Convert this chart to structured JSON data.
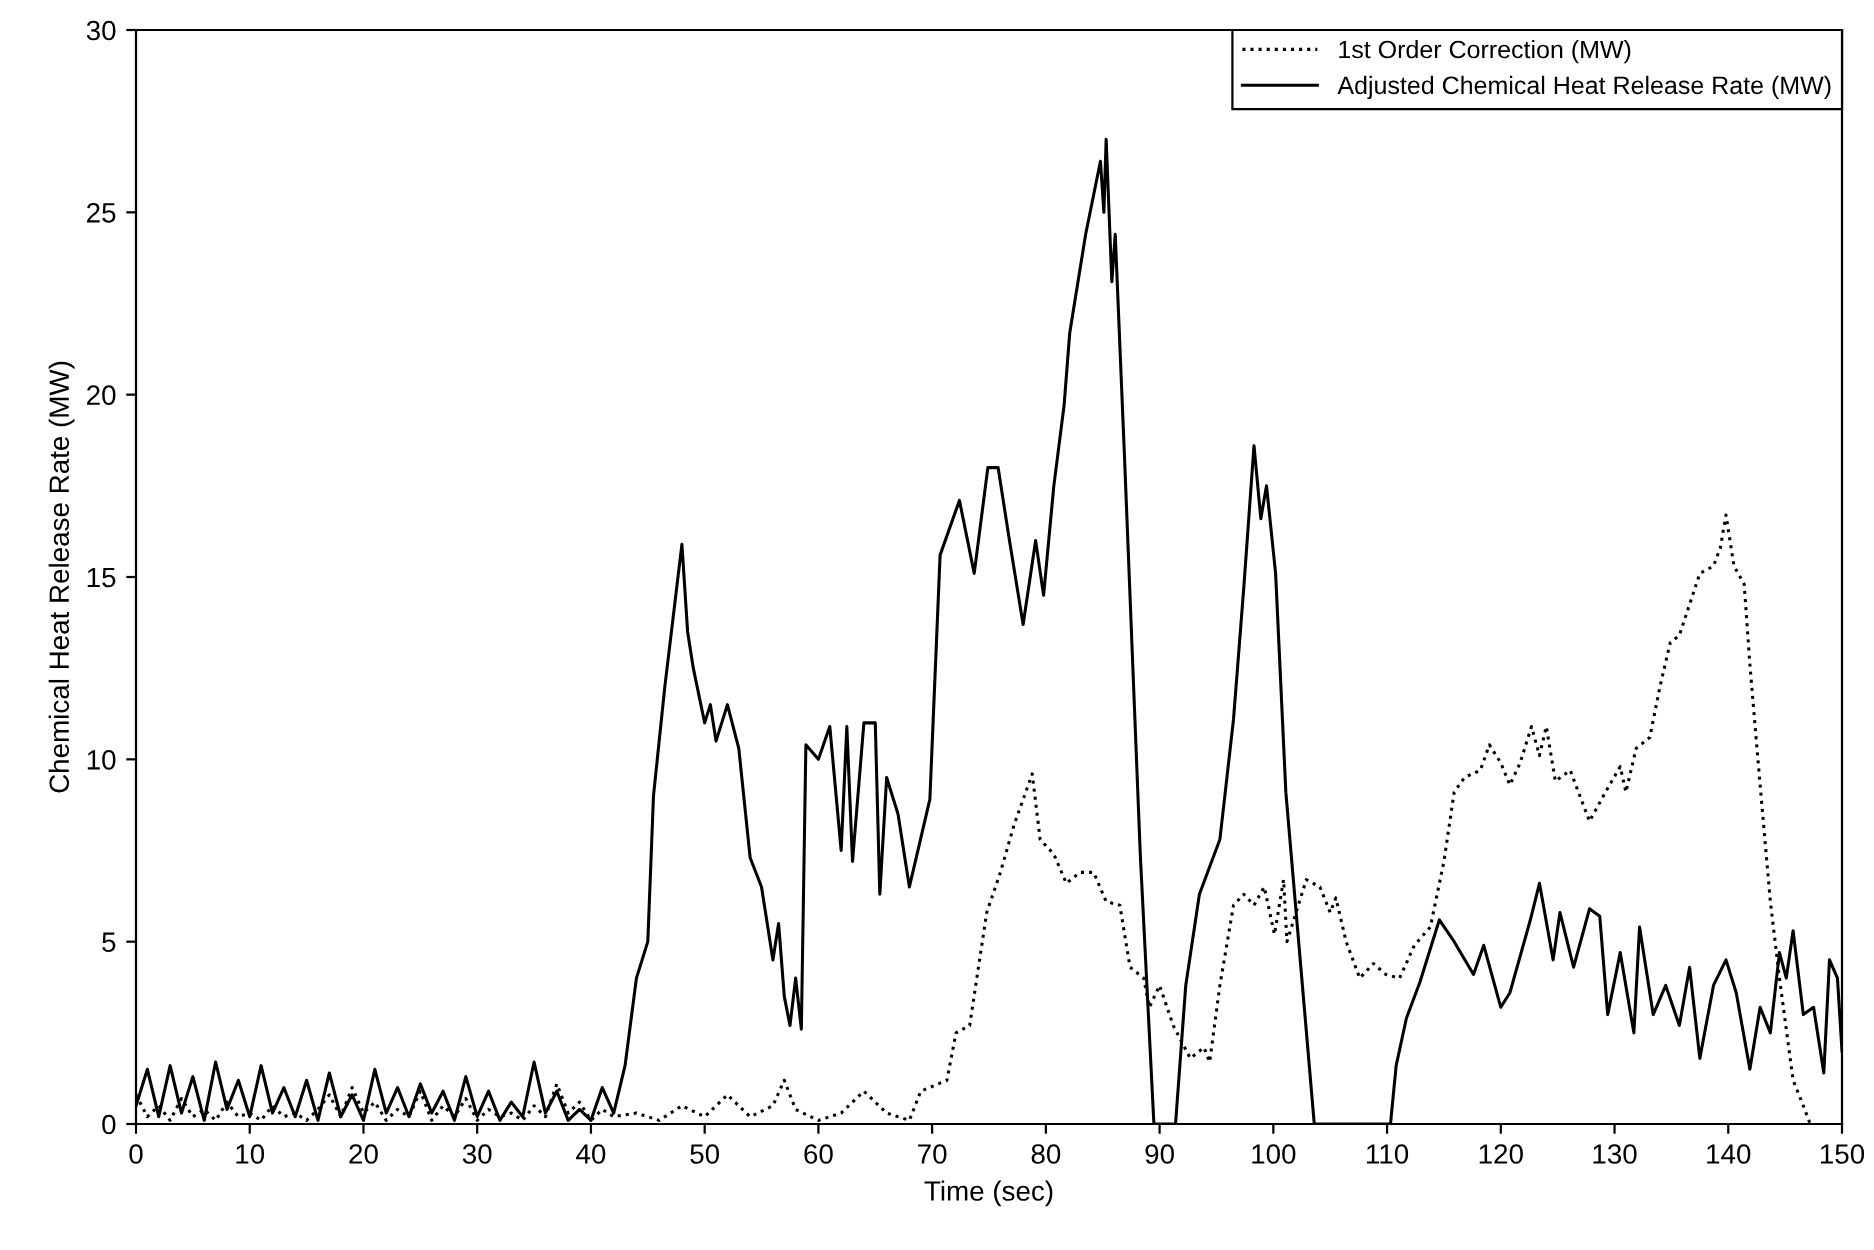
{
  "chart_data": {
    "type": "line",
    "xlabel": "Time (sec)",
    "ylabel": "Chemical Heat Release Rate (MW)",
    "xlim": [
      0,
      150
    ],
    "xticks": [
      0,
      10,
      20,
      30,
      40,
      50,
      60,
      70,
      80,
      90,
      100,
      110,
      120,
      130,
      140,
      150
    ],
    "ylim": [
      0,
      30
    ],
    "yticks": [
      0,
      5,
      10,
      15,
      20,
      25,
      30
    ],
    "grid": false,
    "legend": "top right",
    "marker": "none",
    "series": [
      {
        "name": "1st Order Correction (MW)",
        "color": "#000000",
        "line_style": "dotted",
        "x": [
          0,
          1,
          2,
          3,
          4,
          5,
          6,
          7,
          8,
          9,
          10,
          11,
          12,
          13,
          14,
          15,
          16,
          17,
          18,
          19,
          20,
          21,
          22,
          23,
          24,
          25,
          26,
          27,
          28,
          29,
          30,
          31,
          32,
          33,
          34,
          35,
          36,
          37,
          38,
          39,
          40,
          41,
          42,
          44,
          46,
          48,
          50,
          52,
          54,
          56,
          57,
          58,
          60,
          62,
          64,
          66,
          68,
          69,
          71.3,
          72.1,
          73.3,
          74.8,
          76,
          77.2,
          78.8,
          79.5,
          80.7,
          81.8,
          83,
          84.2,
          85.3,
          86.5,
          87.4,
          88.6,
          89.1,
          90,
          91.2,
          92.7,
          93.9,
          94.4,
          95.3,
          96.5,
          97.4,
          98.3,
          99.2,
          100.1,
          100.9,
          101.2,
          102.9,
          104.1,
          105,
          105.5,
          106.4,
          107.6,
          108.8,
          109.9,
          111.1,
          112.4,
          113.8,
          115,
          115.9,
          116.8,
          118.2,
          119,
          120,
          120.8,
          121.7,
          122.7,
          123.4,
          124,
          124.8,
          126.1,
          127.8,
          129.2,
          130.5,
          131,
          131.9,
          133.1,
          134,
          134.9,
          135.7,
          137.5,
          138.7,
          139.3,
          139.8,
          140.5,
          141.4,
          141.9,
          142.8,
          143.7,
          144.5,
          145.7,
          146.6,
          147.2
        ],
        "values": [
          0.8,
          0.2,
          0.5,
          0.1,
          0.7,
          0.2,
          0.4,
          0.1,
          0.6,
          0.2,
          0.3,
          0.1,
          0.5,
          0.2,
          0.3,
          0.1,
          0.4,
          0.8,
          0.2,
          1.0,
          0.3,
          0.6,
          0.1,
          0.4,
          0.2,
          0.9,
          0.1,
          0.5,
          0.2,
          0.7,
          0.1,
          0.4,
          0.2,
          0.3,
          0.1,
          0.5,
          0.2,
          1.1,
          0.3,
          0.6,
          0.1,
          0.4,
          0.2,
          0.3,
          0.1,
          0.5,
          0.2,
          0.8,
          0.2,
          0.5,
          1.2,
          0.4,
          0.1,
          0.3,
          0.9,
          0.3,
          0.1,
          0.9,
          1.2,
          2.5,
          2.7,
          5.8,
          6.9,
          8.2,
          9.6,
          7.8,
          7.4,
          6.6,
          6.9,
          6.9,
          6.1,
          6.0,
          4.3,
          4.0,
          3.2,
          3.8,
          2.7,
          1.8,
          2.1,
          1.7,
          3.8,
          6.0,
          6.3,
          6.0,
          6.5,
          5.2,
          6.7,
          5.0,
          6.7,
          6.5,
          5.8,
          6.2,
          5.0,
          4.0,
          4.4,
          4.1,
          4.0,
          4.9,
          5.4,
          7.2,
          9.1,
          9.5,
          9.7,
          10.4,
          9.9,
          9.3,
          9.9,
          10.9,
          10.1,
          10.9,
          9.4,
          9.7,
          8.3,
          9.1,
          9.8,
          9.1,
          10.3,
          10.6,
          12.0,
          13.2,
          13.4,
          15.1,
          15.3,
          15.8,
          16.7,
          15.3,
          14.8,
          12.6,
          9.3,
          6.1,
          4.0,
          1.2,
          0.5,
          0
        ]
      },
      {
        "name": "Adjusted Chemical Heat Release Rate (MW)",
        "color": "#000000",
        "line_style": "solid",
        "x": [
          0,
          1,
          2,
          3,
          4,
          5,
          6,
          7,
          8,
          9,
          10,
          11,
          12,
          13,
          14,
          15,
          16,
          17,
          18,
          19,
          20,
          21,
          22,
          23,
          24,
          25,
          26,
          27,
          28,
          29,
          30,
          31,
          32,
          33,
          34,
          35,
          36,
          37,
          38,
          39,
          40,
          41,
          42,
          43,
          44,
          45,
          45.5,
          46.5,
          48,
          48.5,
          49,
          50,
          50.5,
          51,
          52,
          53,
          54,
          55,
          56,
          56.5,
          57,
          57.5,
          58,
          58.5,
          58.9,
          60,
          61,
          62,
          62.5,
          63,
          64,
          65,
          65.4,
          66,
          67,
          68,
          69.8,
          70.7,
          72.4,
          73.7,
          74.9,
          75.8,
          76.8,
          78,
          79.1,
          79.8,
          80.7,
          81.6,
          82.1,
          83.5,
          84.8,
          85.1,
          85.3,
          85.8,
          86.1,
          86.9,
          88.3,
          89.5,
          91.4,
          92.3,
          93.5,
          95.3,
          96.5,
          97.4,
          98.3,
          98.9,
          99.4,
          100.2,
          101.1,
          103.6,
          110.3,
          110.8,
          111.7,
          112.9,
          114.6,
          115.9,
          117.6,
          118.5,
          120,
          120.8,
          122.6,
          123.4,
          124.6,
          125.2,
          126.4,
          127.8,
          128.7,
          129.4,
          130.5,
          131.7,
          132.2,
          133.4,
          134.5,
          135.7,
          136.6,
          137.5,
          138.7,
          139.8,
          140.7,
          141.9,
          142.8,
          143.7,
          144.5,
          145.1,
          145.7,
          146.6,
          147.5,
          148.4,
          148.9,
          149.6,
          150
        ],
        "values": [
          0.5,
          1.5,
          0.2,
          1.6,
          0.3,
          1.3,
          0.1,
          1.7,
          0.4,
          1.2,
          0.2,
          1.6,
          0.3,
          1.0,
          0.2,
          1.2,
          0.1,
          1.4,
          0.2,
          0.8,
          0.1,
          1.5,
          0.3,
          1.0,
          0.2,
          1.1,
          0.3,
          0.9,
          0.1,
          1.3,
          0.2,
          0.9,
          0.1,
          0.6,
          0.2,
          1.7,
          0.3,
          0.9,
          0.1,
          0.4,
          0.1,
          1.0,
          0.3,
          1.6,
          4.0,
          5.0,
          9.0,
          12.0,
          15.9,
          13.5,
          12.5,
          11.0,
          11.5,
          10.5,
          11.5,
          10.3,
          7.3,
          6.5,
          4.5,
          5.5,
          3.5,
          2.7,
          4.0,
          2.6,
          10.4,
          10.0,
          10.9,
          7.5,
          10.9,
          7.2,
          11.0,
          11.0,
          6.3,
          9.5,
          8.5,
          6.5,
          8.9,
          15.6,
          17.1,
          15.1,
          18.0,
          18.0,
          16.0,
          13.7,
          16.0,
          14.5,
          17.5,
          19.7,
          21.7,
          24.4,
          26.4,
          25.0,
          27.0,
          23.1,
          24.4,
          18.4,
          7.4,
          0,
          0,
          3.8,
          6.3,
          7.8,
          11.1,
          14.7,
          18.6,
          16.6,
          17.5,
          15.1,
          9.1,
          0,
          0,
          1.6,
          2.9,
          3.9,
          5.6,
          5.0,
          4.1,
          4.9,
          3.2,
          3.6,
          5.6,
          6.6,
          4.5,
          5.8,
          4.3,
          5.9,
          5.7,
          3.0,
          4.7,
          2.5,
          5.4,
          3.0,
          3.8,
          2.7,
          4.3,
          1.8,
          3.8,
          4.5,
          3.6,
          1.5,
          3.2,
          2.5,
          4.7,
          4.0,
          5.3,
          3.0,
          3.2,
          1.4,
          4.5,
          4.0,
          2.0
        ]
      }
    ]
  }
}
